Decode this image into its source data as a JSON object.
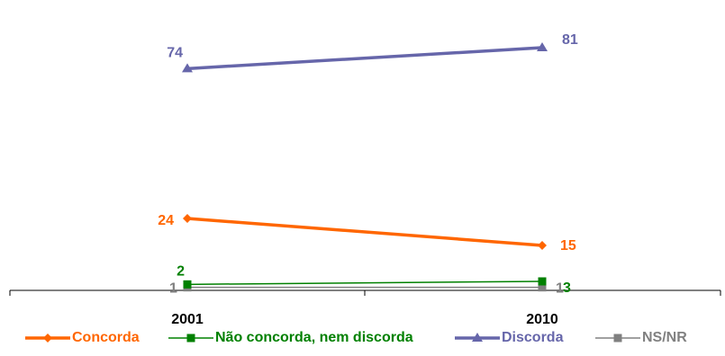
{
  "chart_data": {
    "type": "line",
    "categories": [
      "2001",
      "2010"
    ],
    "ylim": [
      0,
      90
    ],
    "grid": false,
    "legend_position": "bottom",
    "series": [
      {
        "name": "Concorda",
        "values": [
          24,
          15
        ],
        "labels": [
          "24",
          "15"
        ],
        "color": "#ff6600",
        "marker": "diamond",
        "line_weight": "thick"
      },
      {
        "name": "Não concorda, nem discorda",
        "values": [
          2,
          3
        ],
        "labels": [
          "2",
          "3"
        ],
        "color": "#008000",
        "marker": "square",
        "line_weight": "thin"
      },
      {
        "name": "Discorda",
        "values": [
          74,
          81
        ],
        "labels": [
          "74",
          "81"
        ],
        "color": "#6666aa",
        "marker": "triangle",
        "line_weight": "thick"
      },
      {
        "name": "NS/NR",
        "values": [
          1,
          1
        ],
        "labels": [
          "1",
          "1"
        ],
        "color": "#808080",
        "marker": "square",
        "line_weight": "thin"
      }
    ]
  }
}
